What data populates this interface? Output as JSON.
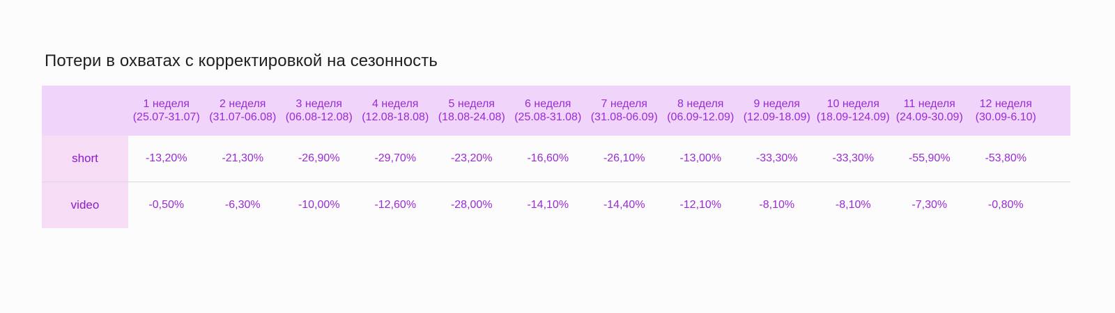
{
  "title": "Потери в охватах с корректировкой на сезонность",
  "columns": [
    {
      "week": "1 неделя",
      "range": "(25.07-31.07)"
    },
    {
      "week": "2 неделя",
      "range": "(31.07-06.08)"
    },
    {
      "week": "3 неделя",
      "range": "(06.08-12.08)"
    },
    {
      "week": "4 неделя",
      "range": "(12.08-18.08)"
    },
    {
      "week": "5 неделя",
      "range": "(18.08-24.08)"
    },
    {
      "week": "6 неделя",
      "range": "(25.08-31.08)"
    },
    {
      "week": "7 неделя",
      "range": "(31.08-06.09)"
    },
    {
      "week": "8 неделя",
      "range": "(06.09-12.09)"
    },
    {
      "week": "9 неделя",
      "range": "(12.09-18.09)"
    },
    {
      "week": "10 неделя",
      "range": "(18.09-124.09)"
    },
    {
      "week": "11 неделя",
      "range": "(24.09-30.09)"
    },
    {
      "week": "12 неделя",
      "range": "(30.09-6.10)"
    }
  ],
  "rows": [
    {
      "label": "short",
      "values": [
        "-13,20%",
        "-21,30%",
        "-26,90%",
        "-29,70%",
        "-23,20%",
        "-16,60%",
        "-26,10%",
        "-13,00%",
        "-33,30%",
        "-33,30%",
        "-55,90%",
        "-53,80%"
      ]
    },
    {
      "label": "video",
      "values": [
        "-0,50%",
        "-6,30%",
        "-10,00%",
        "-12,60%",
        "-28,00%",
        "-14,10%",
        "-14,40%",
        "-12,10%",
        "-8,10%",
        "-8,10%",
        "-7,30%",
        "-0,80%"
      ]
    }
  ],
  "colors": {
    "header_bg": "#f0d4fa",
    "label_bg": "#f7dcf5",
    "text_accent": "#9a2ad6",
    "divider": "#d9d9d9"
  }
}
